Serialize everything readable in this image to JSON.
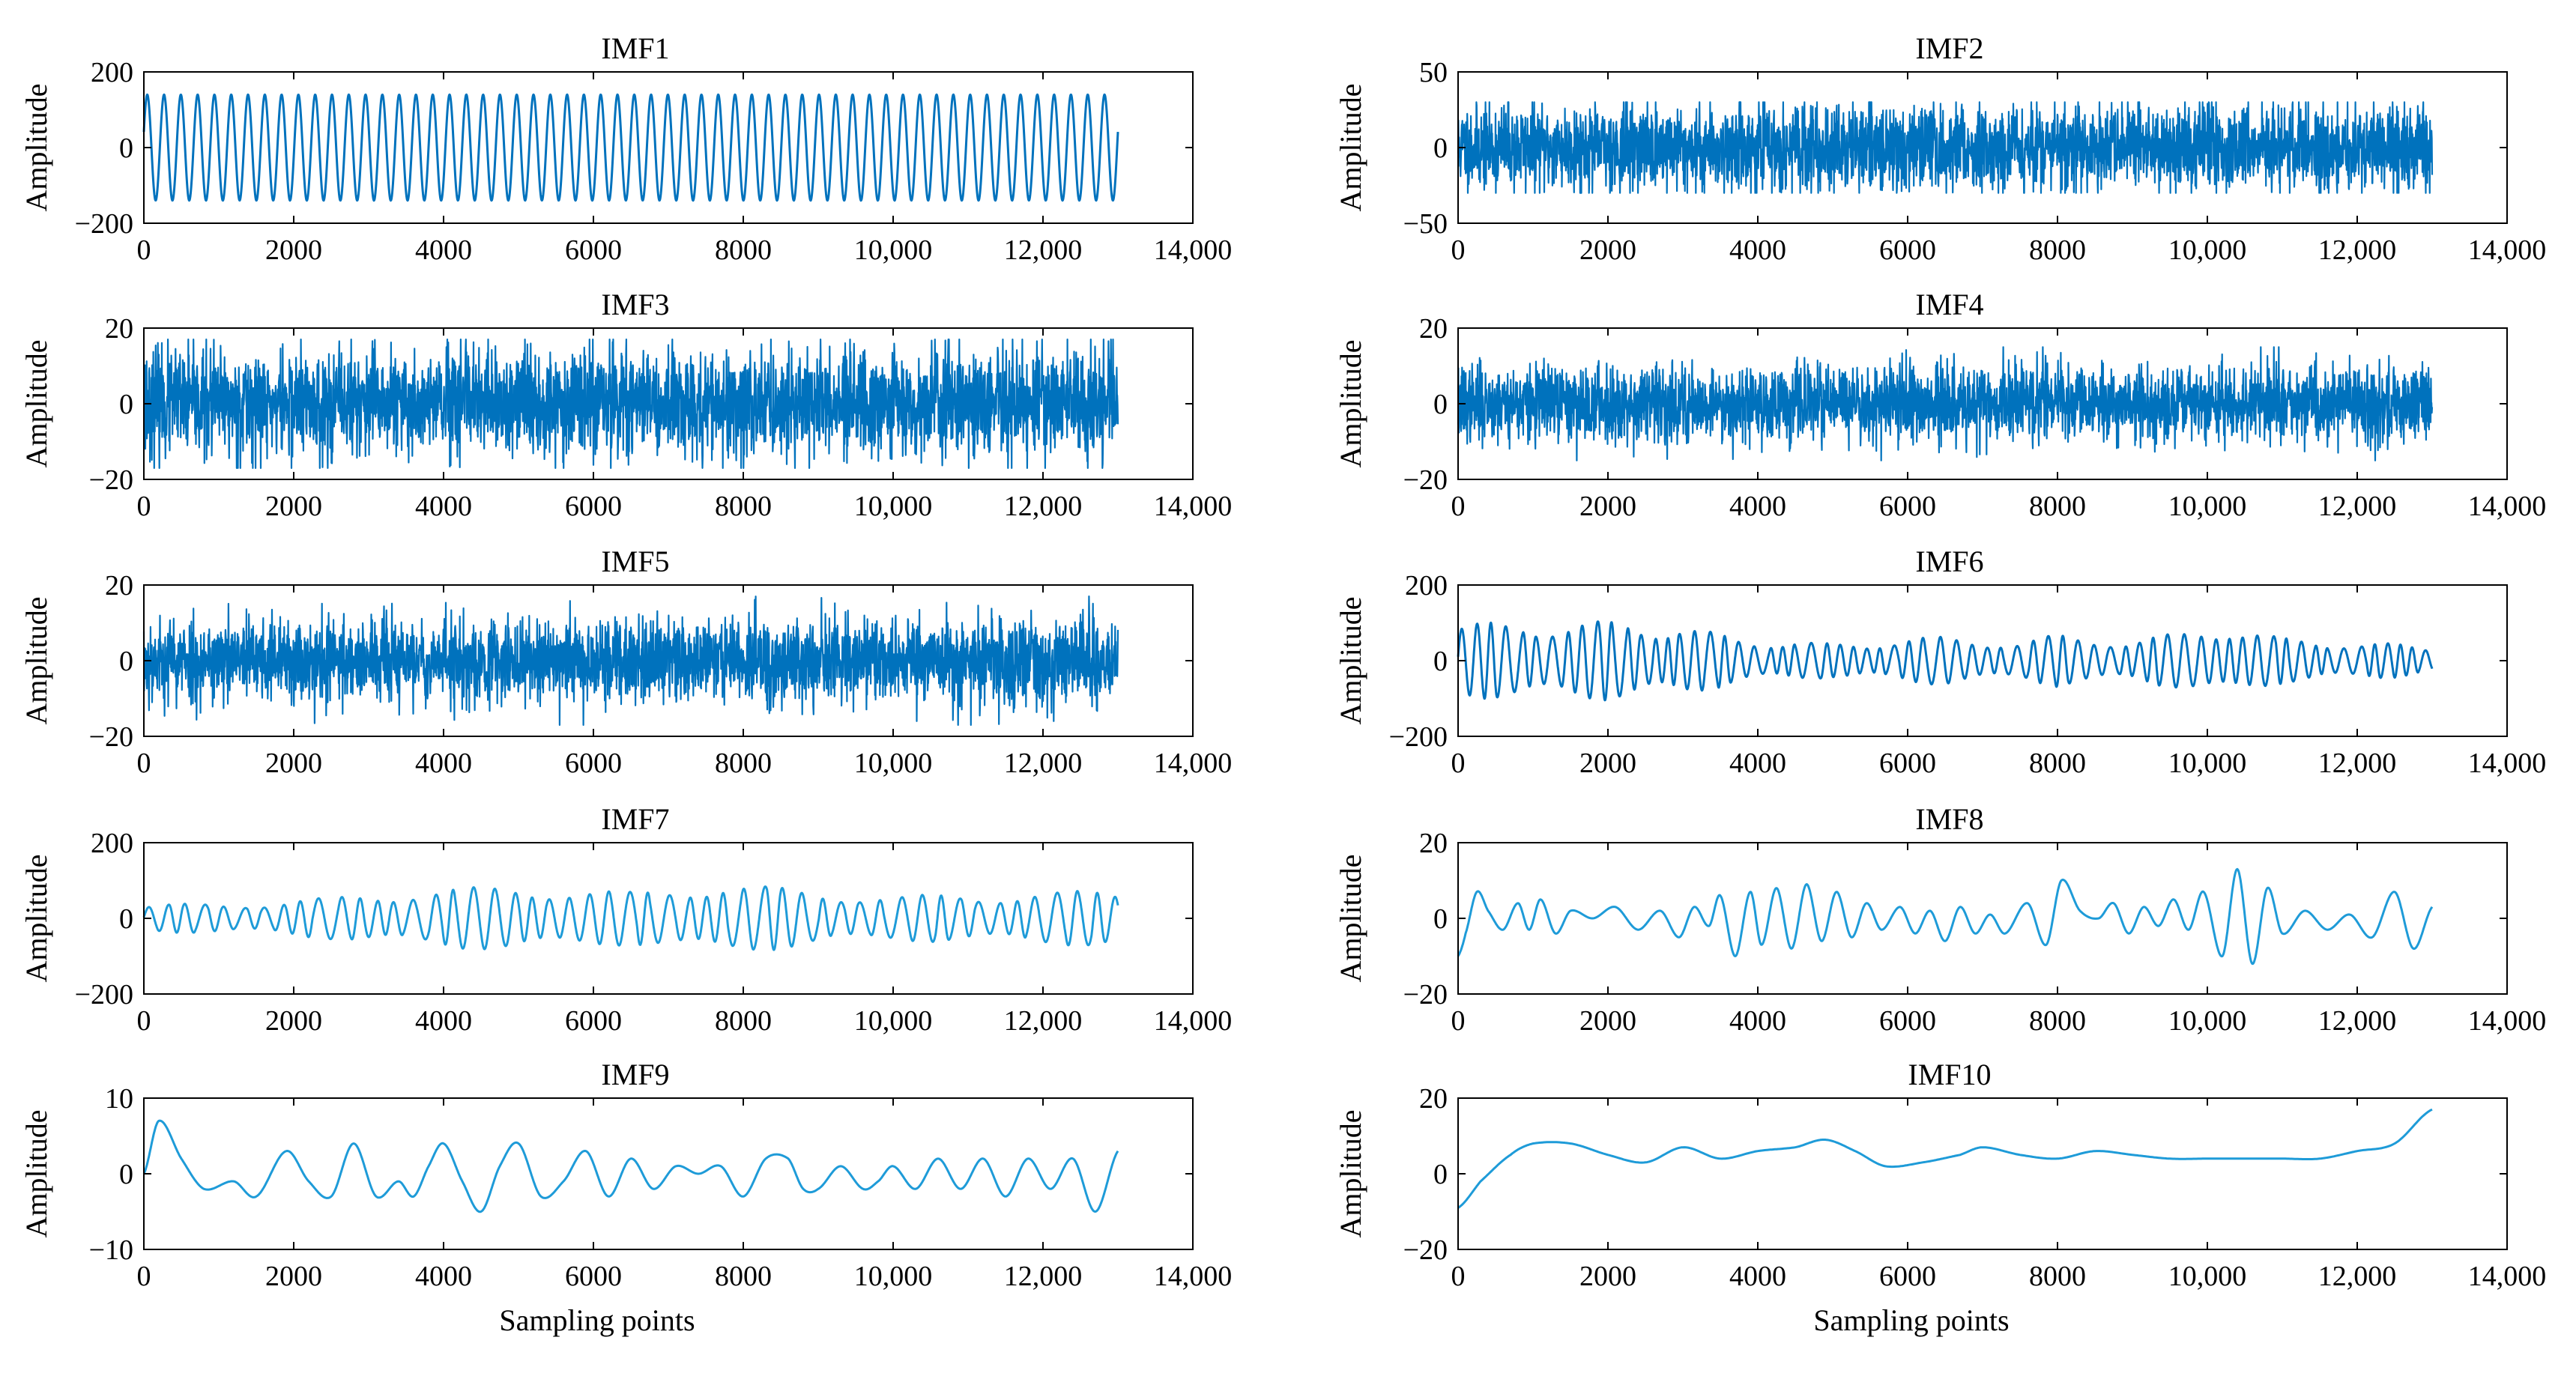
{
  "chart_data": [
    {
      "type": "line",
      "title": "IMF1",
      "ylabel": "Amplitude",
      "xlabel": "",
      "xlim": [
        0,
        14000
      ],
      "ylim": [
        -200,
        200
      ],
      "xticks": [
        0,
        2000,
        4000,
        6000,
        8000,
        10000,
        12000,
        14000
      ],
      "xtick_labels": [
        "0",
        "2000",
        "4000",
        "6000",
        "8000",
        "10,000",
        "12,000",
        "14,000"
      ],
      "yticks": [
        -200,
        0,
        200
      ],
      "ytick_labels": [
        "−200",
        "0",
        "200"
      ],
      "color": "#0072BD",
      "x_end": 13000,
      "signal": {
        "kind": "sine",
        "amplitude": 140,
        "cycles": 58,
        "phase": 0.3
      }
    },
    {
      "type": "line",
      "title": "IMF2",
      "ylabel": "Amplitude",
      "xlabel": "",
      "xlim": [
        0,
        14000
      ],
      "ylim": [
        -50,
        50
      ],
      "xticks": [
        0,
        2000,
        4000,
        6000,
        8000,
        10000,
        12000,
        14000
      ],
      "xtick_labels": [
        "0",
        "2000",
        "4000",
        "6000",
        "8000",
        "10,000",
        "12,000",
        "14,000"
      ],
      "yticks": [
        -50,
        0,
        50
      ],
      "ytick_labels": [
        "−50",
        "0",
        "50"
      ],
      "color": "#0072BD",
      "x_end": 13000,
      "signal": {
        "kind": "noise",
        "amplitude": 14,
        "peak": 30,
        "seed": 11
      }
    },
    {
      "type": "line",
      "title": "IMF3",
      "ylabel": "Amplitude",
      "xlabel": "",
      "xlim": [
        0,
        14000
      ],
      "ylim": [
        -20,
        20
      ],
      "xticks": [
        0,
        2000,
        4000,
        6000,
        8000,
        10000,
        12000,
        14000
      ],
      "xtick_labels": [
        "0",
        "2000",
        "4000",
        "6000",
        "8000",
        "10,000",
        "12,000",
        "14,000"
      ],
      "yticks": [
        -20,
        0,
        20
      ],
      "ytick_labels": [
        "−20",
        "0",
        "20"
      ],
      "color": "#0072BD",
      "x_end": 13000,
      "signal": {
        "kind": "noise",
        "amplitude": 7,
        "peak": 17,
        "seed": 23
      }
    },
    {
      "type": "line",
      "title": "IMF4",
      "ylabel": "Amplitude",
      "xlabel": "",
      "xlim": [
        0,
        14000
      ],
      "ylim": [
        -20,
        20
      ],
      "xticks": [
        0,
        2000,
        4000,
        6000,
        8000,
        10000,
        12000,
        14000
      ],
      "xtick_labels": [
        "0",
        "2000",
        "4000",
        "6000",
        "8000",
        "10,000",
        "12,000",
        "14,000"
      ],
      "yticks": [
        -20,
        0,
        20
      ],
      "ytick_labels": [
        "−20",
        "0",
        "20"
      ],
      "color": "#0072BD",
      "x_end": 13000,
      "signal": {
        "kind": "noise",
        "amplitude": 5,
        "peak": 15,
        "seed": 37
      }
    },
    {
      "type": "line",
      "title": "IMF5",
      "ylabel": "Amplitude",
      "xlabel": "",
      "xlim": [
        0,
        14000
      ],
      "ylim": [
        -20,
        20
      ],
      "xticks": [
        0,
        2000,
        4000,
        6000,
        8000,
        10000,
        12000,
        14000
      ],
      "xtick_labels": [
        "0",
        "2000",
        "4000",
        "6000",
        "8000",
        "10,000",
        "12,000",
        "14,000"
      ],
      "yticks": [
        -20,
        0,
        20
      ],
      "ytick_labels": [
        "−20",
        "0",
        "20"
      ],
      "color": "#0072BD",
      "x_end": 13000,
      "signal": {
        "kind": "noise",
        "amplitude": 5.5,
        "peak": 17,
        "seed": 53
      }
    },
    {
      "type": "line",
      "title": "IMF6",
      "ylabel": "Amplitude",
      "xlabel": "",
      "xlim": [
        0,
        14000
      ],
      "ylim": [
        -200,
        200
      ],
      "xticks": [
        0,
        2000,
        4000,
        6000,
        8000,
        10000,
        12000,
        14000
      ],
      "xtick_labels": [
        "0",
        "2000",
        "4000",
        "6000",
        "8000",
        "10,000",
        "12,000",
        "14,000"
      ],
      "yticks": [
        -200,
        0,
        200
      ],
      "ytick_labels": [
        "−200",
        "0",
        "200"
      ],
      "color": "#0072BD",
      "x_end": 13000,
      "signal": {
        "kind": "wave",
        "cycles": 70,
        "env": [
          [
            0,
            100
          ],
          [
            2000,
            105
          ],
          [
            3000,
            90
          ],
          [
            3800,
            60
          ],
          [
            5000,
            45
          ],
          [
            6500,
            65
          ],
          [
            7500,
            50
          ],
          [
            8000,
            70
          ],
          [
            9000,
            55
          ],
          [
            10300,
            95
          ],
          [
            11000,
            60
          ],
          [
            13000,
            40
          ]
        ],
        "seed": 67
      }
    },
    {
      "type": "line",
      "title": "IMF7",
      "ylabel": "Amplitude",
      "xlabel": "",
      "xlim": [
        0,
        14000
      ],
      "ylim": [
        -200,
        200
      ],
      "xticks": [
        0,
        2000,
        4000,
        6000,
        8000,
        10000,
        12000,
        14000
      ],
      "xtick_labels": [
        "0",
        "2000",
        "4000",
        "6000",
        "8000",
        "10,000",
        "12,000",
        "14,000"
      ],
      "yticks": [
        -200,
        0,
        200
      ],
      "ytick_labels": [
        "−200",
        "0",
        "200"
      ],
      "color": "#1E9BD8",
      "x_end": 13000,
      "signal": {
        "kind": "wave",
        "cycles": 52,
        "env": [
          [
            0,
            35
          ],
          [
            1500,
            45
          ],
          [
            2500,
            55
          ],
          [
            3800,
            80
          ],
          [
            5300,
            85
          ],
          [
            6500,
            70
          ],
          [
            7600,
            95
          ],
          [
            9000,
            75
          ],
          [
            10000,
            60
          ],
          [
            11000,
            65
          ],
          [
            13000,
            75
          ]
        ],
        "seed": 79
      }
    },
    {
      "type": "line",
      "title": "IMF8",
      "ylabel": "Amplitude",
      "xlabel": "",
      "xlim": [
        0,
        14000
      ],
      "ylim": [
        -20,
        20
      ],
      "xticks": [
        0,
        2000,
        4000,
        6000,
        8000,
        10000,
        12000,
        14000
      ],
      "xtick_labels": [
        "0",
        "2000",
        "4000",
        "6000",
        "8000",
        "10,000",
        "12,000",
        "14,000"
      ],
      "yticks": [
        -20,
        0,
        20
      ],
      "ytick_labels": [
        "−20",
        "0",
        "20"
      ],
      "color": "#1E9BD8",
      "x_end": 13000,
      "x": [
        0,
        100,
        250,
        400,
        600,
        800,
        950,
        1100,
        1300,
        1500,
        1800,
        2100,
        2400,
        2700,
        2950,
        3150,
        3350,
        3500,
        3700,
        3900,
        4050,
        4250,
        4450,
        4650,
        4850,
        5050,
        5250,
        5450,
        5650,
        5900,
        6100,
        6300,
        6500,
        6700,
        6900,
        7100,
        7300,
        7600,
        7850,
        8050,
        8300,
        8550,
        8750,
        8950,
        9150,
        9350,
        9550,
        9750,
        9950,
        10200,
        10400,
        10600,
        10800,
        11000,
        11300,
        11600,
        11900,
        12200,
        12500,
        12750,
        13000
      ],
      "y": [
        -10,
        -4,
        7,
        2,
        -3,
        4,
        -3,
        5,
        -4,
        2,
        0,
        3,
        -3,
        2,
        -5,
        3,
        -2,
        6,
        -10,
        7,
        -7,
        8,
        -8,
        9,
        -6,
        7,
        -5,
        4,
        -3,
        3,
        -4,
        2,
        -6,
        3,
        -4,
        1,
        -4,
        4,
        -7,
        10,
        2,
        0,
        4,
        -4,
        3,
        -2,
        5,
        -3,
        7,
        -10,
        13,
        -12,
        8,
        -4,
        2,
        -3,
        1,
        -5,
        7,
        -8,
        3
      ]
    },
    {
      "type": "line",
      "title": "IMF9",
      "ylabel": "Amplitude",
      "xlabel": "Sampling points",
      "xlim": [
        0,
        14000
      ],
      "ylim": [
        -10,
        10
      ],
      "xticks": [
        0,
        2000,
        4000,
        6000,
        8000,
        10000,
        12000,
        14000
      ],
      "xtick_labels": [
        "0",
        "2000",
        "4000",
        "6000",
        "8000",
        "10,000",
        "12,000",
        "14,000"
      ],
      "yticks": [
        -10,
        0,
        10
      ],
      "ytick_labels": [
        "−10",
        "0",
        "10"
      ],
      "color": "#1E9BD8",
      "x_end": 13000,
      "x": [
        0,
        200,
        500,
        800,
        1200,
        1500,
        1900,
        2200,
        2500,
        2800,
        3100,
        3400,
        3600,
        3800,
        4000,
        4250,
        4500,
        4750,
        5000,
        5300,
        5600,
        5900,
        6200,
        6500,
        6800,
        7100,
        7400,
        7700,
        8000,
        8300,
        8600,
        8800,
        9000,
        9300,
        9600,
        9800,
        10000,
        10300,
        10600,
        10900,
        11200,
        11500,
        11800,
        12100,
        12400,
        12700,
        13000
      ],
      "y": [
        0,
        7,
        2,
        -2,
        -1,
        -3,
        3,
        -1,
        -3,
        4,
        -3,
        -1,
        -3,
        1,
        4,
        -1,
        -5,
        1,
        4,
        -3,
        -1,
        3,
        -3,
        2,
        -2,
        1,
        0,
        1,
        -3,
        2,
        2,
        -2,
        -2,
        1,
        -2,
        -1,
        1,
        -2,
        2,
        -2,
        2,
        -3,
        2,
        -2,
        2,
        -5,
        3
      ]
    },
    {
      "type": "line",
      "title": "IMF10",
      "ylabel": "Amplitude",
      "xlabel": "Sampling points",
      "xlim": [
        0,
        14000
      ],
      "ylim": [
        -20,
        20
      ],
      "xticks": [
        0,
        2000,
        4000,
        6000,
        8000,
        10000,
        12000,
        14000
      ],
      "xtick_labels": [
        "0",
        "2000",
        "4000",
        "6000",
        "8000",
        "10,000",
        "12,000",
        "14,000"
      ],
      "yticks": [
        -20,
        0,
        20
      ],
      "ytick_labels": [
        "−20",
        "0",
        "20"
      ],
      "color": "#1E9BD8",
      "x_end": 13000,
      "x": [
        0,
        300,
        700,
        1000,
        1500,
        2000,
        2500,
        3000,
        3500,
        4000,
        4500,
        4900,
        5300,
        5700,
        6200,
        6700,
        7000,
        7500,
        8000,
        8500,
        9000,
        9500,
        10000,
        10500,
        11000,
        11500,
        12000,
        12500,
        13000
      ],
      "y": [
        -9,
        -2,
        5,
        8,
        8,
        5,
        3,
        7,
        4,
        6,
        7,
        9,
        6,
        2,
        3,
        5,
        7,
        5,
        4,
        6,
        5,
        4,
        4,
        4,
        4,
        4,
        6,
        8,
        17
      ]
    }
  ]
}
